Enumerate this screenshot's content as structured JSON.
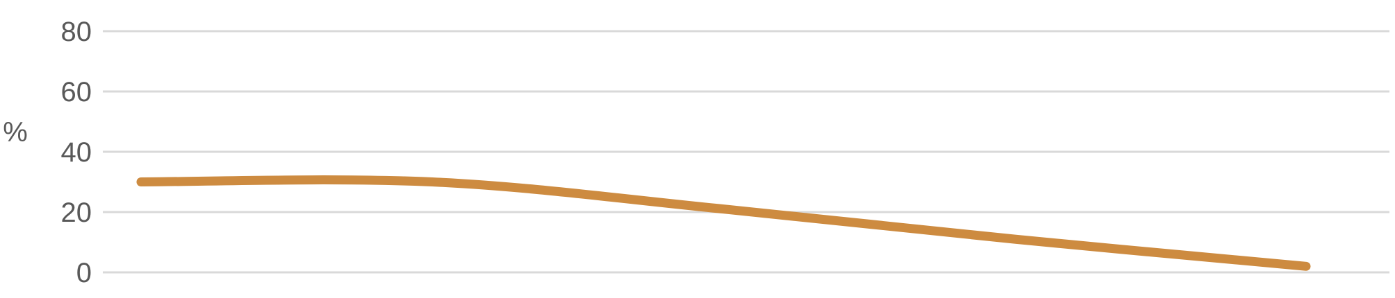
{
  "chart_data": {
    "type": "line",
    "title": "",
    "xlabel": "",
    "ylabel": "%",
    "ylim": [
      0,
      80
    ],
    "yticks": [
      "0",
      "20",
      "40",
      "60",
      "80"
    ],
    "grid": true,
    "smooth": true,
    "series": [
      {
        "color": "#cd8b40",
        "x": [
          1,
          2,
          3,
          4,
          5
        ],
        "values": [
          30,
          30,
          21,
          11,
          2
        ]
      }
    ]
  }
}
